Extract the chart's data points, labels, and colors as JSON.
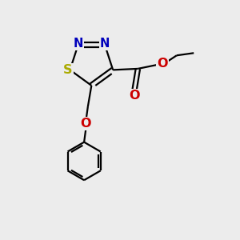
{
  "background_color": "#ececec",
  "bond_color": "#000000",
  "bond_width": 1.6,
  "atom_colors": {
    "N": "#0000bb",
    "S": "#aaaa00",
    "O": "#cc0000",
    "C": "#000000"
  },
  "font_size": 10.5,
  "figsize": [
    3.0,
    3.0
  ],
  "dpi": 100
}
